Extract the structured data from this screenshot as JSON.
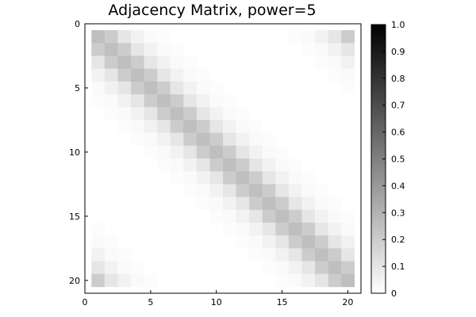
{
  "chart_data": {
    "type": "heatmap",
    "title": "Adjacency Matrix, power=5",
    "xlabel": "",
    "ylabel": "",
    "n": 20,
    "xlim": [
      0,
      21
    ],
    "ylim": [
      0,
      21
    ],
    "y_inverted": true,
    "xticks": [
      0,
      5,
      10,
      15,
      20
    ],
    "yticks": [
      0,
      5,
      10,
      15,
      20
    ],
    "grid": false,
    "colormap": "greys",
    "color_low": "#ffffff",
    "color_high": "#000000",
    "clim": [
      0,
      1
    ],
    "colorbar_ticks": [
      "0",
      "0.1",
      "0.2",
      "0.3",
      "0.4",
      "0.5",
      "0.6",
      "0.7",
      "0.8",
      "0.9",
      "1.0"
    ],
    "circular_offset_values": [
      0.25,
      0.2,
      0.1,
      0.05,
      0.02,
      0.01
    ],
    "structure": "circulant band: value depends on circular distance between row and column indices (1-20)"
  }
}
